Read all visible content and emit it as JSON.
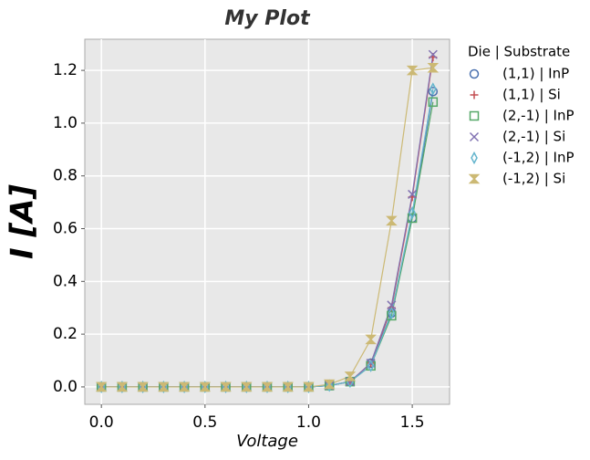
{
  "chart_data": {
    "type": "line",
    "title": "My Plot",
    "x_label": "Voltage",
    "y_label": "I [A]",
    "x": [
      0.0,
      0.1,
      0.2,
      0.3,
      0.4,
      0.5,
      0.6,
      0.7,
      0.8,
      0.9,
      1.0,
      1.1,
      1.2,
      1.3,
      1.4,
      1.5,
      1.6
    ],
    "series": [
      {
        "name": "(1,1) | InP",
        "color": "#4c72b0",
        "marker": "circle",
        "values": [
          0,
          0,
          0,
          0,
          0,
          0,
          0,
          0,
          0,
          0,
          0,
          0.005,
          0.02,
          0.09,
          0.28,
          0.64,
          1.12
        ]
      },
      {
        "name": "(1,1) | Si",
        "color": "#c44e52",
        "marker": "plus",
        "values": [
          0,
          0,
          0,
          0,
          0,
          0,
          0,
          0,
          0,
          0,
          0,
          0.005,
          0.02,
          0.09,
          0.3,
          0.72,
          1.25
        ]
      },
      {
        "name": "(2,-1) | InP",
        "color": "#55a868",
        "marker": "square",
        "values": [
          0,
          0,
          0,
          0,
          0,
          0,
          0,
          0,
          0,
          0,
          0,
          0.005,
          0.02,
          0.08,
          0.27,
          0.64,
          1.08
        ]
      },
      {
        "name": "(2,-1) | Si",
        "color": "#8172b2",
        "marker": "cross",
        "values": [
          0,
          0,
          0,
          0,
          0,
          0,
          0,
          0,
          0,
          0,
          0,
          0.005,
          0.02,
          0.09,
          0.31,
          0.73,
          1.26
        ]
      },
      {
        "name": "(-1,2) | InP",
        "color": "#64b5cd",
        "marker": "thin-diamond",
        "values": [
          0,
          0,
          0,
          0,
          0,
          0,
          0,
          0,
          0,
          0,
          0,
          0.005,
          0.02,
          0.08,
          0.28,
          0.66,
          1.13
        ]
      },
      {
        "name": "(-1,2) | Si",
        "color": "#ccb974",
        "marker": "hourglass",
        "values": [
          0,
          0,
          0,
          0,
          0,
          0,
          0,
          0,
          0,
          0,
          0,
          0.01,
          0.04,
          0.18,
          0.63,
          1.2,
          1.21
        ]
      }
    ],
    "legend_title": "Die | Substrate",
    "legend_position": "outside-right",
    "xlim": [
      -0.08,
      1.68
    ],
    "xticks": [
      {
        "value": 0.0,
        "label": "0.0"
      },
      0.5,
      {
        "value": 1.0,
        "label": "1.0"
      },
      1.5
    ],
    "ylim": [
      -0.066,
      1.318
    ],
    "yticks": [
      {
        "value": 0.0,
        "label": "0.0"
      },
      0.2,
      0.4,
      0.6,
      0.8,
      {
        "value": 1.0,
        "label": "1.0"
      },
      1.2
    ],
    "grid": true
  }
}
